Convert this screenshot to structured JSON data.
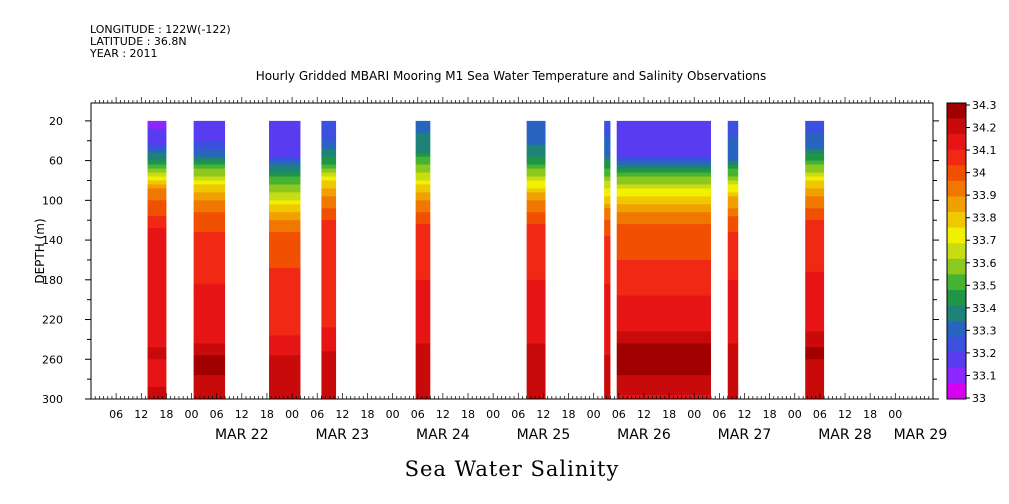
{
  "header": {
    "longitude": "LONGITUDE : 122W(-122)",
    "latitude": "LATITUDE : 36.8N",
    "year": "YEAR : 2011"
  },
  "chart_data": {
    "type": "heatmap",
    "title": "Hourly Gridded MBARI Mooring M1 Sea Water Temperature and Salinity Observations",
    "subtitle": "Sea Water Salinity",
    "ylabel": "DEPTH (m)",
    "xlabel": "",
    "ylim": [
      300,
      2
    ],
    "y_reversed": true,
    "y_ticks": [
      20,
      60,
      100,
      140,
      180,
      220,
      260,
      300
    ],
    "x_unit": "hours since MAR 21 00:00",
    "xlim": [
      0,
      201
    ],
    "x_hour_ticks": [
      {
        "h": 6,
        "label": "06"
      },
      {
        "h": 12,
        "label": "12"
      },
      {
        "h": 18,
        "label": "18"
      },
      {
        "h": 24,
        "label": "00"
      },
      {
        "h": 30,
        "label": "06"
      },
      {
        "h": 36,
        "label": "12"
      },
      {
        "h": 42,
        "label": "18"
      },
      {
        "h": 48,
        "label": "00"
      },
      {
        "h": 54,
        "label": "06"
      },
      {
        "h": 60,
        "label": "12"
      },
      {
        "h": 66,
        "label": "18"
      },
      {
        "h": 72,
        "label": "00"
      },
      {
        "h": 78,
        "label": "06"
      },
      {
        "h": 84,
        "label": "12"
      },
      {
        "h": 90,
        "label": "18"
      },
      {
        "h": 96,
        "label": "00"
      },
      {
        "h": 102,
        "label": "06"
      },
      {
        "h": 108,
        "label": "12"
      },
      {
        "h": 114,
        "label": "18"
      },
      {
        "h": 120,
        "label": "00"
      },
      {
        "h": 126,
        "label": "06"
      },
      {
        "h": 132,
        "label": "12"
      },
      {
        "h": 138,
        "label": "18"
      },
      {
        "h": 144,
        "label": "00"
      },
      {
        "h": 150,
        "label": "06"
      },
      {
        "h": 156,
        "label": "12"
      },
      {
        "h": 162,
        "label": "18"
      },
      {
        "h": 168,
        "label": "00"
      },
      {
        "h": 174,
        "label": "06"
      },
      {
        "h": 180,
        "label": "12"
      },
      {
        "h": 186,
        "label": "18"
      },
      {
        "h": 192,
        "label": "00"
      }
    ],
    "x_day_labels": [
      {
        "h": 36,
        "label": "MAR 22"
      },
      {
        "h": 60,
        "label": "MAR 23"
      },
      {
        "h": 84,
        "label": "MAR 24"
      },
      {
        "h": 108,
        "label": "MAR 25"
      },
      {
        "h": 132,
        "label": "MAR 26"
      },
      {
        "h": 156,
        "label": "MAR 27"
      },
      {
        "h": 180,
        "label": "MAR 28"
      },
      {
        "h": 198,
        "label": "MAR 29"
      }
    ],
    "data_segments": [
      {
        "start": 13.5,
        "end": 18,
        "top_value": 33.1,
        "profile": [
          [
            20,
            33.1
          ],
          [
            45,
            33.2
          ],
          [
            70,
            33.6
          ],
          [
            90,
            33.9
          ],
          [
            110,
            34.0
          ],
          [
            130,
            34.1
          ],
          [
            240,
            34.1
          ],
          [
            255,
            34.2
          ],
          [
            270,
            34.1
          ],
          [
            300,
            34.2
          ]
        ]
      },
      {
        "start": 24.5,
        "end": 32,
        "top_value": 33.15,
        "profile": [
          [
            20,
            33.15
          ],
          [
            40,
            33.2
          ],
          [
            60,
            33.4
          ],
          [
            80,
            33.7
          ],
          [
            100,
            33.9
          ],
          [
            120,
            34.0
          ],
          [
            140,
            34.05
          ],
          [
            240,
            34.15
          ],
          [
            260,
            34.25
          ],
          [
            300,
            34.2
          ]
        ]
      },
      {
        "start": 42.5,
        "end": 50,
        "top_value": 33.2,
        "profile": [
          [
            20,
            33.2
          ],
          [
            55,
            33.2
          ],
          [
            70,
            33.4
          ],
          [
            90,
            33.6
          ],
          [
            110,
            33.8
          ],
          [
            130,
            33.95
          ],
          [
            145,
            34.0
          ],
          [
            240,
            34.1
          ],
          [
            265,
            34.2
          ],
          [
            300,
            34.2
          ]
        ]
      },
      {
        "start": 55,
        "end": 58.5,
        "top_value": 33.2,
        "profile": [
          [
            20,
            33.2
          ],
          [
            45,
            33.3
          ],
          [
            65,
            33.5
          ],
          [
            85,
            33.8
          ],
          [
            105,
            33.95
          ],
          [
            125,
            34.05
          ],
          [
            240,
            34.1
          ],
          [
            260,
            34.2
          ],
          [
            300,
            34.2
          ]
        ]
      },
      {
        "start": 77.5,
        "end": 81,
        "top_value": 33.3,
        "profile": [
          [
            20,
            33.3
          ],
          [
            50,
            33.4
          ],
          [
            70,
            33.6
          ],
          [
            90,
            33.8
          ],
          [
            110,
            33.95
          ],
          [
            130,
            34.05
          ],
          [
            240,
            34.15
          ],
          [
            260,
            34.2
          ],
          [
            300,
            34.2
          ]
        ]
      },
      {
        "start": 104,
        "end": 108.5,
        "top_value": 33.3,
        "profile": [
          [
            20,
            33.3
          ],
          [
            50,
            33.35
          ],
          [
            70,
            33.55
          ],
          [
            90,
            33.8
          ],
          [
            110,
            33.95
          ],
          [
            130,
            34.05
          ],
          [
            240,
            34.15
          ],
          [
            260,
            34.2
          ],
          [
            300,
            34.2
          ]
        ]
      },
      {
        "start": 122.5,
        "end": 124,
        "top_value": 33.25,
        "profile": [
          [
            20,
            33.25
          ],
          [
            50,
            33.3
          ],
          [
            80,
            33.6
          ],
          [
            110,
            33.9
          ],
          [
            140,
            34.05
          ],
          [
            240,
            34.15
          ],
          [
            300,
            34.2
          ]
        ]
      },
      {
        "start": 125.5,
        "end": 148,
        "top_value": 33.2,
        "profile": [
          [
            20,
            33.2
          ],
          [
            55,
            33.2
          ],
          [
            70,
            33.45
          ],
          [
            85,
            33.65
          ],
          [
            100,
            33.8
          ],
          [
            120,
            33.95
          ],
          [
            140,
            34.0
          ],
          [
            180,
            34.05
          ],
          [
            200,
            34.1
          ],
          [
            230,
            34.15
          ],
          [
            245,
            34.25
          ],
          [
            270,
            34.25
          ],
          [
            285,
            34.2
          ],
          [
            300,
            34.15
          ]
        ]
      },
      {
        "start": 152,
        "end": 154.5,
        "top_value": 33.25,
        "profile": [
          [
            20,
            33.25
          ],
          [
            55,
            33.3
          ],
          [
            75,
            33.55
          ],
          [
            95,
            33.8
          ],
          [
            115,
            33.95
          ],
          [
            135,
            34.05
          ],
          [
            240,
            34.15
          ],
          [
            260,
            34.2
          ],
          [
            300,
            34.2
          ]
        ]
      },
      {
        "start": 170.5,
        "end": 175,
        "top_value": 33.25,
        "profile": [
          [
            20,
            33.25
          ],
          [
            45,
            33.3
          ],
          [
            65,
            33.55
          ],
          [
            85,
            33.8
          ],
          [
            105,
            33.95
          ],
          [
            125,
            34.05
          ],
          [
            230,
            34.15
          ],
          [
            250,
            34.25
          ],
          [
            280,
            34.2
          ],
          [
            300,
            34.2
          ]
        ]
      }
    ],
    "colorbar": {
      "labels": [
        "34.3",
        "34.2",
        "34.1",
        "34",
        "33.9",
        "33.8",
        "33.7",
        "33.6",
        "33.5",
        "33.4",
        "33.3",
        "33.2",
        "33.1",
        "33"
      ],
      "min": 33,
      "max": 34.3,
      "colors": [
        "#d800f0",
        "#8c28ff",
        "#5a3cf0",
        "#3c50e0",
        "#2864c0",
        "#1e8278",
        "#1e9646",
        "#46b432",
        "#8cc81e",
        "#c8dc14",
        "#f0f000",
        "#f0c800",
        "#f0a000",
        "#f07800",
        "#f05000",
        "#f02814",
        "#e61414",
        "#c80a0a",
        "#a00000"
      ]
    }
  }
}
